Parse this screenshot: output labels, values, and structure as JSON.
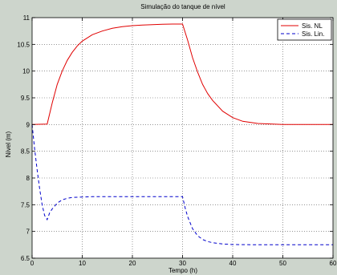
{
  "chart_data": {
    "type": "line",
    "title": "Simulação do tanque de nível",
    "xlabel": "Tempo (h)",
    "ylabel": "Nível (m)",
    "xlim": [
      0,
      60
    ],
    "ylim": [
      6.5,
      11
    ],
    "xticks": [
      0,
      10,
      20,
      30,
      40,
      50,
      60
    ],
    "xtick_labels": [
      "0",
      "10",
      "20",
      "30",
      "40",
      "50",
      "60"
    ],
    "yticks": [
      6.5,
      7,
      7.5,
      8,
      8.5,
      9,
      9.5,
      10,
      10.5,
      11
    ],
    "ytick_labels": [
      "6.5",
      "7",
      "7.5",
      "8",
      "8.5",
      "9",
      "9.5",
      "10",
      "10.5",
      "11"
    ],
    "grid": true,
    "legend": "top-right",
    "series": [
      {
        "name": "Sis. NL",
        "color": "#e00000",
        "style": "solid",
        "x": [
          0,
          3,
          4,
          5,
          6,
          7,
          8,
          9,
          10,
          12,
          14,
          16,
          18,
          20,
          22,
          24,
          26,
          28,
          30,
          31,
          32,
          33,
          34,
          35,
          36,
          38,
          40,
          42,
          45,
          50,
          55,
          60
        ],
        "y": [
          9.0,
          9.01,
          9.4,
          9.75,
          10.0,
          10.2,
          10.35,
          10.47,
          10.56,
          10.68,
          10.75,
          10.8,
          10.83,
          10.85,
          10.86,
          10.87,
          10.875,
          10.88,
          10.88,
          10.58,
          10.25,
          9.98,
          9.75,
          9.58,
          9.45,
          9.25,
          9.13,
          9.06,
          9.02,
          9.0,
          9.0,
          9.0
        ]
      },
      {
        "name": "Sis. Lin.",
        "color": "#0000cc",
        "style": "dashed",
        "x": [
          0,
          0.5,
          1,
          1.5,
          2,
          2.5,
          3,
          3.5,
          4,
          5,
          6,
          7,
          8,
          10,
          12,
          15,
          20,
          25,
          30,
          30.5,
          31,
          32,
          33,
          34,
          35,
          36,
          38,
          40,
          45,
          50,
          55,
          60
        ],
        "y": [
          9.0,
          8.55,
          8.15,
          7.8,
          7.5,
          7.3,
          7.22,
          7.35,
          7.42,
          7.53,
          7.59,
          7.62,
          7.635,
          7.645,
          7.65,
          7.65,
          7.65,
          7.65,
          7.65,
          7.45,
          7.28,
          7.05,
          6.92,
          6.85,
          6.81,
          6.79,
          6.765,
          6.755,
          6.75,
          6.75,
          6.75,
          6.75
        ]
      }
    ]
  }
}
